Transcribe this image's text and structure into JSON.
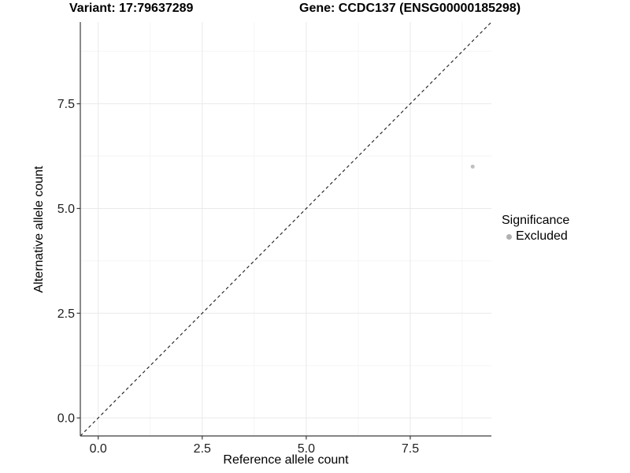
{
  "header": {
    "variant_title": "Variant: 17:79637289",
    "gene_title": "Gene: CCDC137 (ENSG00000185298)"
  },
  "chart_data": {
    "type": "scatter",
    "xlabel": "Reference allele count",
    "ylabel": "Alternative allele count",
    "xlim": [
      -0.43,
      9.45
    ],
    "ylim": [
      -0.43,
      9.45
    ],
    "xticks": [
      0.0,
      2.5,
      5.0,
      7.5
    ],
    "xtick_labels": [
      "0.0",
      "2.5",
      "5.0",
      "7.5"
    ],
    "yticks": [
      0.0,
      2.5,
      5.0,
      7.5
    ],
    "ytick_labels": [
      "0.0",
      "2.5",
      "5.0",
      "7.5"
    ],
    "xminor": [
      1.25,
      3.75,
      6.25,
      8.75
    ],
    "yminor": [
      1.25,
      3.75,
      6.25,
      8.75
    ],
    "grid": "major and minor, very light gray on white",
    "series": [
      {
        "name": "Excluded",
        "color": "#bfbfbf",
        "points": [
          {
            "x": 9,
            "y": 6
          }
        ]
      }
    ],
    "identity_line": {
      "slope": 1,
      "intercept": 0,
      "style": "dashed",
      "color": "#1a1a1a"
    },
    "legend": {
      "title": "Significance",
      "position": "right",
      "entries": [
        {
          "label": "Excluded",
          "color": "#b0b0b0"
        }
      ]
    }
  },
  "colors": {
    "background": "#ffffff",
    "axis_line": "#3c3c3c",
    "tick_mark": "#3c3c3c",
    "tick_label": "#1f1f1f",
    "grid_major": "#e9e9e9",
    "grid_minor": "#f5f5f5"
  }
}
